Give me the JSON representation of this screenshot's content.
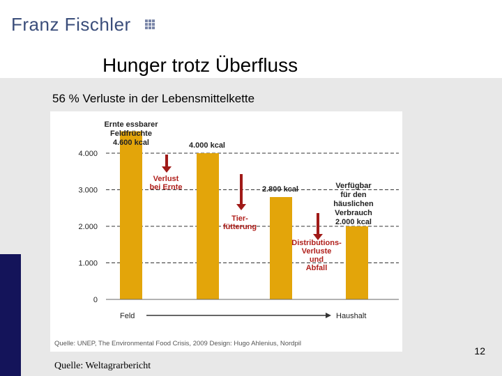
{
  "header": {
    "logo_text": "Franz Fischler"
  },
  "slide": {
    "title": "Hunger trotz Überfluss",
    "subtitle": "56 % Verluste in der Lebensmittelkette",
    "page_number": "12",
    "source": "Quelle: Weltagrarbericht"
  },
  "colors": {
    "bar": "#e3a50a",
    "arrow": "#a01a18",
    "loss_text": "#b0201c",
    "navy": "#14145a",
    "logo": "#3a4d7a"
  },
  "chart_data": {
    "type": "bar",
    "categories": [
      "Ernte essbarer Feldfrüchte",
      "Verlust bei Ernte",
      "Tierfütterung",
      "Distributions-Verluste und Abfall"
    ],
    "values": [
      4600,
      4000,
      2800,
      2000
    ],
    "ylim": [
      0,
      4800
    ],
    "yticks": [
      0,
      1000,
      2000,
      3000,
      4000
    ],
    "ytick_labels": [
      "0",
      "1.000",
      "2.000",
      "3.000",
      "4.000"
    ],
    "grid": "dashed",
    "bar_labels": [
      [
        "Ernte essbarer",
        "Feldfrüchte",
        "4.600 kcal"
      ],
      [
        "4.000 kcal"
      ],
      [
        "2.800 kcal"
      ],
      [
        "Verfügbar",
        "für den",
        "häuslichen",
        "Verbrauch",
        "2.000 kcal"
      ]
    ],
    "losses": [
      {
        "label": [
          "Verlust",
          "bei Ernte"
        ]
      },
      {
        "label": [
          "Tier-",
          "fütterung"
        ]
      },
      {
        "label": [
          "Distributions-",
          "Verluste",
          "und",
          "Abfall"
        ]
      }
    ],
    "x_axis": {
      "start_label": "Feld",
      "end_label": "Haushalt"
    },
    "credit": "Quelle: UNEP, The Environmental Food Crisis, 2009     Design: Hugo Ahlenius, Nordpil"
  }
}
